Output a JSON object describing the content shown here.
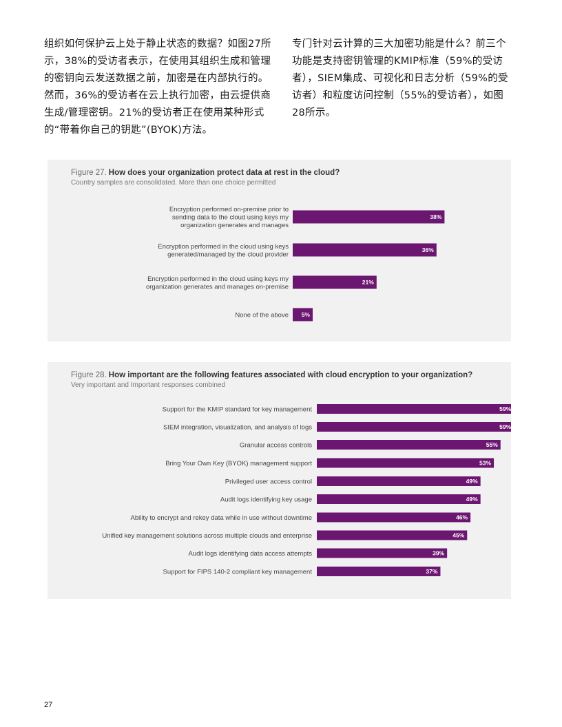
{
  "text": {
    "left": "组织如何保护云上处于静止状态的数据？如图27所示，38%的受访者表示，在使用其组织生成和管理的密钥向云发送数据之前，加密是在内部执行的。然而，36%的受访者在云上执行加密，由云提供商生成/管理密钥。21%的受访者正在使用某种形式的“带着你自己的钥匙”(BYOK)方法。",
    "right": "专门针对云计算的三大加密功能是什么？前三个功能是支持密钥管理的KMIP标准（59%的受访者），SIEM集成、可视化和日志分析（59%的受访者）和粒度访问控制（55%的受访者），如图28所示。"
  },
  "page_number": "27",
  "colors": {
    "bar": "#6b1670",
    "panel": "#f1f1f1"
  },
  "figures": {
    "fig27": {
      "number": "Figure 27.",
      "title": "How does your organization protect data at rest in the cloud?",
      "subtitle": "Country samples are consolidated. More than one choice permitted"
    },
    "fig28": {
      "number": "Figure 28.",
      "title": "How important are the following features associated with cloud encryption to your organization?",
      "subtitle": "Very important and Important responses combined"
    }
  },
  "chart_data": [
    {
      "type": "bar",
      "orientation": "horizontal",
      "title": "How does your organization protect data at rest in the cloud?",
      "categories": [
        [
          "Encryption performed on-premise prior to",
          "sending data to the cloud using keys my",
          "organization generates and manages"
        ],
        [
          "Encryption performed in the cloud using keys",
          "generated/managed by the cloud provider"
        ],
        [
          "Encryption performed in the cloud using keys my",
          "organization generates and manages on-premise"
        ],
        [
          "None of the above"
        ]
      ],
      "values": [
        38,
        36,
        21,
        5
      ],
      "value_labels": [
        "38%",
        "36%",
        "21%",
        "5%"
      ],
      "xlim": [
        0,
        100
      ]
    },
    {
      "type": "bar",
      "orientation": "horizontal",
      "title": "How important are the following features associated with cloud encryption to your organization?",
      "categories": [
        [
          "Support for the KMIP standard for key management"
        ],
        [
          "SIEM integration, visualization, and analysis of logs"
        ],
        [
          "Granular access controls"
        ],
        [
          "Bring Your Own Key (BYOK) management support"
        ],
        [
          "Privileged user access control"
        ],
        [
          "Audit logs identifying key usage"
        ],
        [
          "Ability to encrypt and rekey data while in use without downtime"
        ],
        [
          "Unified key management solutions across multiple clouds and enterprise"
        ],
        [
          "Audit logs identifying data access attempts"
        ],
        [
          "Support for FIPS 140-2 compliant key management"
        ]
      ],
      "values": [
        59,
        59,
        55,
        53,
        49,
        49,
        46,
        45,
        39,
        37
      ],
      "value_labels": [
        "59%",
        "59%",
        "55%",
        "53%",
        "49%",
        "49%",
        "46%",
        "45%",
        "39%",
        "37%"
      ],
      "xlim": [
        0,
        100
      ]
    }
  ]
}
